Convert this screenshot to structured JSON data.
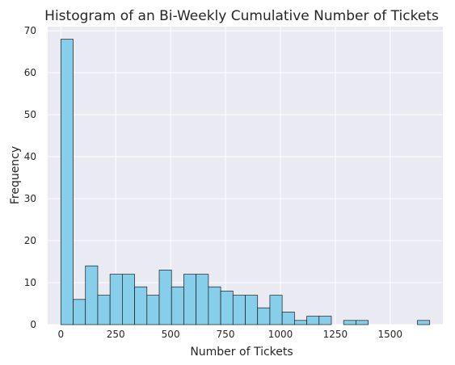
{
  "chart_data": {
    "type": "histogram",
    "title": "Histogram of an Bi-Weekly Cumulative Number of Tickets",
    "xlabel": "Number of Tickets",
    "ylabel": "Frequency",
    "xlim": [
      -60,
      1740
    ],
    "ylim": [
      0,
      71
    ],
    "grid": true,
    "colors": {
      "background": "#eaeaf2",
      "bar": "#87ceeb",
      "edge": "#1a1a1a",
      "grid": "#ffffff"
    },
    "xticks": [
      0,
      250,
      500,
      750,
      1000,
      1250,
      1500
    ],
    "yticks": [
      0,
      10,
      20,
      30,
      40,
      50,
      60,
      70
    ],
    "bin_start": 0,
    "bin_width": 56,
    "counts": [
      68,
      6,
      14,
      7,
      12,
      12,
      9,
      7,
      13,
      9,
      12,
      12,
      9,
      8,
      7,
      7,
      4,
      7,
      3,
      1,
      2,
      2,
      0,
      1,
      1,
      0,
      0,
      0,
      0,
      1
    ]
  }
}
